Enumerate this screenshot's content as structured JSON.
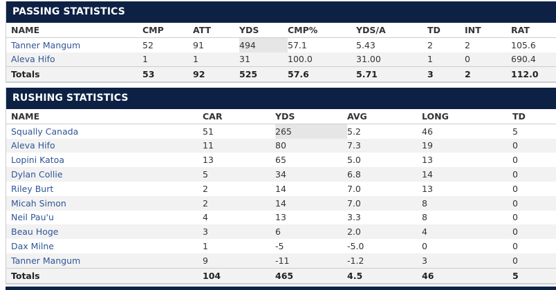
{
  "passing": {
    "title": "PASSING STATISTICS",
    "columns": [
      "NAME",
      "CMP",
      "ATT",
      "YDS",
      "CMP%",
      "YDS/A",
      "TD",
      "INT",
      "RAT"
    ],
    "rows": [
      [
        "Tanner Mangum",
        "52",
        "91",
        "494",
        "57.1",
        "5.43",
        "2",
        "2",
        "105.6"
      ],
      [
        "Aleva Hifo",
        "1",
        "1",
        "31",
        "100.0",
        "31.00",
        "1",
        "0",
        "690.4"
      ]
    ],
    "totals": [
      "Totals",
      "53",
      "92",
      "525",
      "57.6",
      "5.71",
      "3",
      "2",
      "112.0"
    ]
  },
  "rushing": {
    "title": "RUSHING STATISTICS",
    "columns": [
      "NAME",
      "CAR",
      "YDS",
      "AVG",
      "LONG",
      "TD"
    ],
    "rows": [
      [
        "Squally Canada",
        "51",
        "265",
        "5.2",
        "46",
        "5"
      ],
      [
        "Aleva Hifo",
        "11",
        "80",
        "7.3",
        "19",
        "0"
      ],
      [
        "Lopini Katoa",
        "13",
        "65",
        "5.0",
        "13",
        "0"
      ],
      [
        "Dylan Collie",
        "5",
        "34",
        "6.8",
        "14",
        "0"
      ],
      [
        "Riley Burt",
        "2",
        "14",
        "7.0",
        "13",
        "0"
      ],
      [
        "Micah Simon",
        "2",
        "14",
        "7.0",
        "8",
        "0"
      ],
      [
        "Neil Pau'u",
        "4",
        "13",
        "3.3",
        "8",
        "0"
      ],
      [
        "Beau Hoge",
        "3",
        "6",
        "2.0",
        "4",
        "0"
      ],
      [
        "Dax Milne",
        "1",
        "-5",
        "-5.0",
        "0",
        "0"
      ],
      [
        "Tanner Mangum",
        "9",
        "-11",
        "-1.2",
        "3",
        "0"
      ]
    ],
    "totals": [
      "Totals",
      "104",
      "465",
      "4.5",
      "46",
      "5"
    ]
  }
}
